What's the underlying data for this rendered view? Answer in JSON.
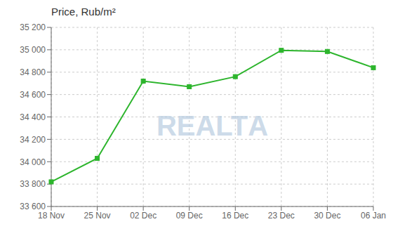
{
  "chart_data": {
    "type": "line",
    "title": "Price, Rub/m²",
    "categories": [
      "18 Nov",
      "25 Nov",
      "02 Dec",
      "09 Dec",
      "16 Dec",
      "23 Dec",
      "30 Dec",
      "06 Jan"
    ],
    "values": [
      33820,
      34030,
      34720,
      34670,
      34760,
      34995,
      34985,
      34840
    ],
    "color": "#2db52d",
    "marker": "square",
    "ylim": [
      33600,
      35200
    ],
    "yticks": [
      {
        "value": 33600,
        "label": "33 600"
      },
      {
        "value": 33800,
        "label": "33 800"
      },
      {
        "value": 34000,
        "label": "34 000"
      },
      {
        "value": 34200,
        "label": "34 200"
      },
      {
        "value": 34400,
        "label": "34 400"
      },
      {
        "value": 34600,
        "label": "34 600"
      },
      {
        "value": 34800,
        "label": "34 800"
      },
      {
        "value": 35000,
        "label": "35 000"
      },
      {
        "value": 35200,
        "label": "35 200"
      }
    ],
    "grid": true,
    "annotation": "REALTА"
  }
}
